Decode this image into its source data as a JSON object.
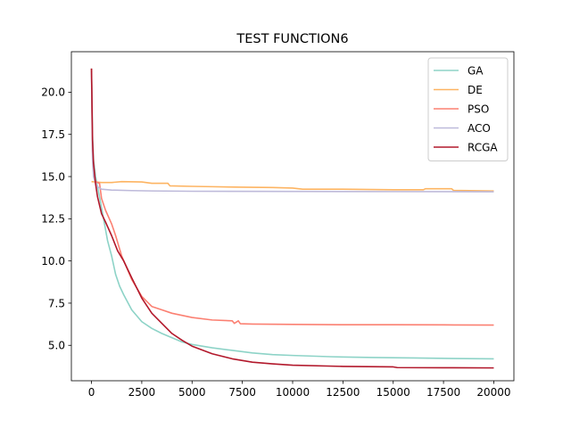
{
  "chart_data": {
    "type": "line",
    "title": "TEST FUNCTION6",
    "xlabel": "",
    "ylabel": "",
    "xlim": [
      -1000,
      21000
    ],
    "ylim": [
      2.9,
      22.4
    ],
    "xticks": [
      0,
      2500,
      5000,
      7500,
      10000,
      12500,
      15000,
      17500,
      20000
    ],
    "yticks": [
      5.0,
      7.5,
      10.0,
      12.5,
      15.0,
      17.5,
      20.0
    ],
    "legend_position": "top-right",
    "grid": false,
    "series": [
      {
        "name": "GA",
        "color": "#8dd3c7",
        "points": [
          [
            0,
            21.4
          ],
          [
            50,
            17.5
          ],
          [
            100,
            16.0
          ],
          [
            200,
            15.0
          ],
          [
            400,
            13.8
          ],
          [
            600,
            12.5
          ],
          [
            800,
            11.2
          ],
          [
            1000,
            10.3
          ],
          [
            1200,
            9.2
          ],
          [
            1400,
            8.5
          ],
          [
            1600,
            8.0
          ],
          [
            2000,
            7.1
          ],
          [
            2500,
            6.4
          ],
          [
            3000,
            6.0
          ],
          [
            3500,
            5.7
          ],
          [
            4000,
            5.45
          ],
          [
            4500,
            5.2
          ],
          [
            5000,
            5.05
          ],
          [
            6000,
            4.85
          ],
          [
            7000,
            4.7
          ],
          [
            8000,
            4.55
          ],
          [
            9000,
            4.45
          ],
          [
            10000,
            4.4
          ],
          [
            12000,
            4.32
          ],
          [
            14000,
            4.28
          ],
          [
            16000,
            4.25
          ],
          [
            18000,
            4.22
          ],
          [
            20000,
            4.2
          ]
        ]
      },
      {
        "name": "DE",
        "color": "#fdb462",
        "points": [
          [
            0,
            14.7
          ],
          [
            500,
            14.65
          ],
          [
            1000,
            14.65
          ],
          [
            1500,
            14.7
          ],
          [
            2500,
            14.68
          ],
          [
            3000,
            14.6
          ],
          [
            3800,
            14.6
          ],
          [
            3900,
            14.45
          ],
          [
            5000,
            14.42
          ],
          [
            6000,
            14.4
          ],
          [
            7500,
            14.37
          ],
          [
            9000,
            14.35
          ],
          [
            10000,
            14.32
          ],
          [
            10500,
            14.25
          ],
          [
            12500,
            14.25
          ],
          [
            15000,
            14.22
          ],
          [
            16500,
            14.22
          ],
          [
            16600,
            14.28
          ],
          [
            17900,
            14.28
          ],
          [
            18000,
            14.18
          ],
          [
            20000,
            14.15
          ]
        ]
      },
      {
        "name": "PSO",
        "color": "#fb8072",
        "points": [
          [
            0,
            21.4
          ],
          [
            50,
            16.5
          ],
          [
            100,
            15.2
          ],
          [
            200,
            14.7
          ],
          [
            400,
            14.6
          ],
          [
            500,
            13.7
          ],
          [
            700,
            13.0
          ],
          [
            1000,
            12.2
          ],
          [
            1200,
            11.5
          ],
          [
            1500,
            10.3
          ],
          [
            2000,
            8.9
          ],
          [
            2500,
            7.9
          ],
          [
            3000,
            7.3
          ],
          [
            3500,
            7.1
          ],
          [
            4000,
            6.9
          ],
          [
            5000,
            6.65
          ],
          [
            6000,
            6.5
          ],
          [
            7000,
            6.45
          ],
          [
            7100,
            6.3
          ],
          [
            7300,
            6.45
          ],
          [
            7400,
            6.28
          ],
          [
            8000,
            6.26
          ],
          [
            10000,
            6.24
          ],
          [
            12500,
            6.22
          ],
          [
            15000,
            6.22
          ],
          [
            17500,
            6.21
          ],
          [
            20000,
            6.2
          ]
        ]
      },
      {
        "name": "ACO",
        "color": "#bebada",
        "points": [
          [
            0,
            21.2
          ],
          [
            50,
            16.0
          ],
          [
            100,
            15.0
          ],
          [
            200,
            14.6
          ],
          [
            300,
            14.4
          ],
          [
            500,
            14.25
          ],
          [
            1000,
            14.2
          ],
          [
            2000,
            14.17
          ],
          [
            3000,
            14.15
          ],
          [
            5000,
            14.13
          ],
          [
            10000,
            14.12
          ],
          [
            15000,
            14.11
          ],
          [
            20000,
            14.1
          ]
        ]
      },
      {
        "name": "RCGA",
        "color": "#b2182b",
        "points": [
          [
            0,
            21.4
          ],
          [
            50,
            17.2
          ],
          [
            100,
            15.8
          ],
          [
            200,
            14.6
          ],
          [
            300,
            13.8
          ],
          [
            500,
            12.8
          ],
          [
            700,
            12.3
          ],
          [
            1000,
            11.5
          ],
          [
            1300,
            10.6
          ],
          [
            1600,
            10.0
          ],
          [
            2000,
            9.0
          ],
          [
            2500,
            7.8
          ],
          [
            3000,
            6.9
          ],
          [
            3500,
            6.3
          ],
          [
            4000,
            5.7
          ],
          [
            4500,
            5.3
          ],
          [
            5000,
            4.95
          ],
          [
            6000,
            4.5
          ],
          [
            7000,
            4.2
          ],
          [
            8000,
            4.0
          ],
          [
            9000,
            3.9
          ],
          [
            10000,
            3.82
          ],
          [
            12500,
            3.75
          ],
          [
            15000,
            3.72
          ],
          [
            15200,
            3.68
          ],
          [
            17500,
            3.67
          ],
          [
            20000,
            3.66
          ]
        ]
      }
    ]
  }
}
